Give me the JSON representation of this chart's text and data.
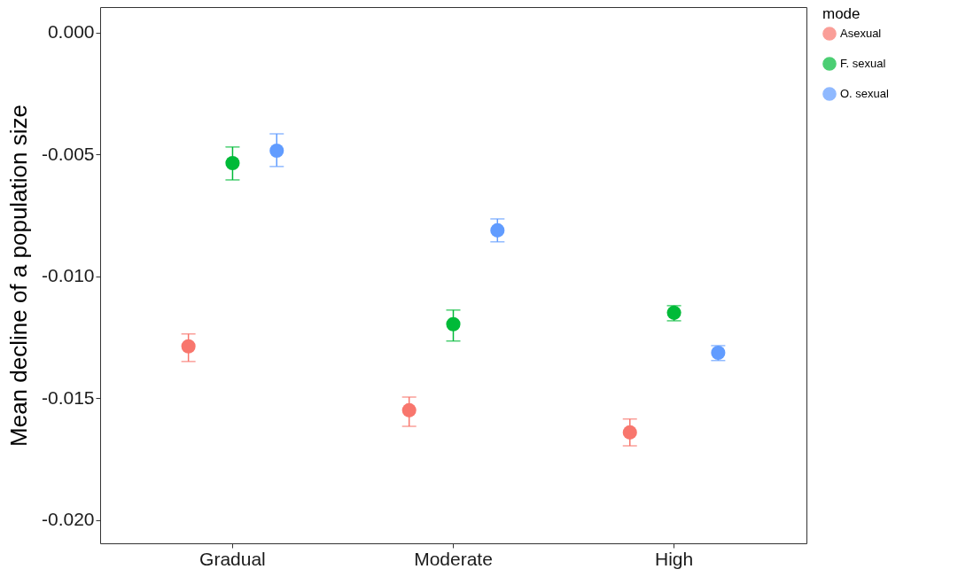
{
  "chart_data": {
    "type": "scatter",
    "ylabel": "Mean decline of a population size",
    "legend_title": "mode",
    "categories": [
      "Gradual",
      "Moderate",
      "High"
    ],
    "ylim": [
      -0.02095,
      0.00105
    ],
    "yticks": [
      {
        "value": -0.02,
        "label": "-0.020"
      },
      {
        "value": -0.015,
        "label": "-0.015"
      },
      {
        "value": -0.01,
        "label": "-0.010"
      },
      {
        "value": -0.005,
        "label": "-0.005"
      },
      {
        "value": 0,
        "label": "0.000"
      }
    ],
    "grid": false,
    "legend": "right",
    "marker": "circle",
    "series": [
      {
        "name": "Asexual",
        "color": "#f8766d",
        "values": [
          -0.01287,
          -0.01549,
          -0.0164
        ],
        "errors": [
          [
            -0.01349,
            -0.01236
          ],
          [
            -0.01615,
            -0.01495
          ],
          [
            -0.01695,
            -0.01585
          ]
        ]
      },
      {
        "name": "F. sexual",
        "color": "#00ba38",
        "values": [
          -0.00535,
          -0.01196,
          -0.01149
        ],
        "errors": [
          [
            -0.00604,
            -0.00469
          ],
          [
            -0.01265,
            -0.01138
          ],
          [
            -0.01182,
            -0.0112
          ]
        ]
      },
      {
        "name": "O. sexual",
        "color": "#619cff",
        "values": [
          -0.00484,
          -0.00811,
          -0.01313
        ],
        "errors": [
          [
            -0.00549,
            -0.00415
          ],
          [
            -0.00858,
            -0.00764
          ],
          [
            -0.01345,
            -0.01284
          ]
        ]
      }
    ]
  }
}
